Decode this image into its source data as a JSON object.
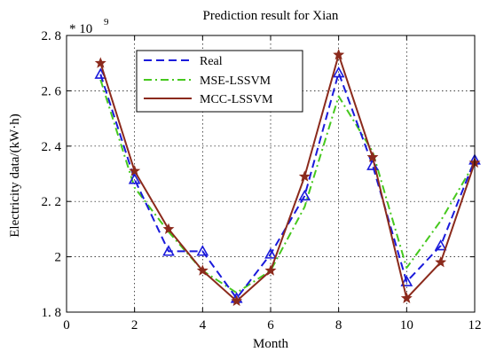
{
  "chart_data": {
    "type": "line",
    "title": "Prediction result for Xian",
    "xlabel": "Month",
    "ylabel": "Electricity data/(kW·h)",
    "y_multiplier": "* 10",
    "y_multiplier_exponent": "9",
    "xlim": [
      0,
      12
    ],
    "ylim": [
      1.8,
      2.8
    ],
    "x_ticks": [
      "0",
      "2",
      "4",
      "6",
      "8",
      "10",
      "12"
    ],
    "y_ticks": [
      "1. 8",
      "2",
      "2. 2",
      "2. 4",
      "2. 6",
      "2. 8"
    ],
    "x_tick_values": [
      0,
      2,
      4,
      6,
      8,
      10,
      12
    ],
    "y_tick_values": [
      1.8,
      2.0,
      2.2,
      2.4,
      2.6,
      2.8
    ],
    "grid": true,
    "legend_position": "top-left",
    "x": [
      1,
      2,
      3,
      4,
      5,
      6,
      7,
      8,
      9,
      10,
      11,
      12
    ],
    "series": [
      {
        "name": "Real",
        "color": "#1a1adb",
        "dash": "dashed",
        "marker": "triangle",
        "values": [
          2.66,
          2.28,
          2.02,
          2.02,
          1.85,
          2.01,
          2.22,
          2.665,
          2.33,
          1.91,
          2.04,
          2.35
        ]
      },
      {
        "name": "MSE-LSSVM",
        "color": "#46c81e",
        "dash": "dashdot",
        "marker": "none",
        "values": [
          2.64,
          2.25,
          2.09,
          1.95,
          1.87,
          1.95,
          2.18,
          2.58,
          2.38,
          1.96,
          2.13,
          2.34
        ]
      },
      {
        "name": "MCC-LSSVM",
        "color": "#8b2a1c",
        "dash": "solid",
        "marker": "star",
        "values": [
          2.7,
          2.31,
          2.1,
          1.95,
          1.84,
          1.95,
          2.29,
          2.73,
          2.36,
          1.85,
          1.98,
          2.34
        ]
      }
    ]
  }
}
